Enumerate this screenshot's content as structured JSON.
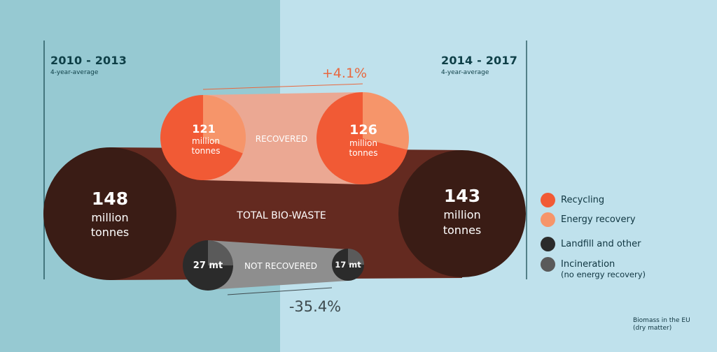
{
  "periods": {
    "left": {
      "years": "2010 - 2013",
      "note": "4-year-average"
    },
    "right": {
      "years": "2014 - 2017",
      "note": "4-year-average"
    }
  },
  "total": {
    "label": "TOTAL BIO-WASTE",
    "left": {
      "value": "148",
      "unit1": "million",
      "unit2": "tonnes"
    },
    "right": {
      "value": "143",
      "unit1": "million",
      "unit2": "tonnes"
    }
  },
  "recovered": {
    "label": "RECOVERED",
    "change": "+4.1%",
    "left": {
      "value": "121",
      "unit1": "million",
      "unit2": "tonnes",
      "recycling_share": 0.69
    },
    "right": {
      "value": "126",
      "unit1": "million",
      "unit2": "tonnes",
      "recycling_share": 0.71
    }
  },
  "not_recovered": {
    "label": "NOT RECOVERED",
    "change": "-35.4%",
    "left": {
      "value": "27 mt",
      "landfill_share": 0.75
    },
    "right": {
      "value": "17 mt",
      "landfill_share": 0.75
    }
  },
  "legend": [
    {
      "label": "Recycling",
      "color": "#f15a35"
    },
    {
      "label": "Energy recovery",
      "color": "#f6956a"
    },
    {
      "label": "Landfill and other",
      "color": "#2b2b2b"
    },
    {
      "label": "Incineration",
      "note": "(no energy recovery)",
      "color": "#5a5a5a"
    }
  ],
  "footnote": {
    "line1": "Biomass in the EU",
    "line2": "(dry matter)"
  },
  "colors": {
    "bg_left": "#96c9d2",
    "bg_right": "#bfe1ec",
    "total_band": "#642a20",
    "total_circle": "#3a1c15",
    "recovered_band": "#eba893",
    "not_recovered_band": "#8e8e8e",
    "change_up": "#e8683f",
    "change_down": "#3e4a4e"
  }
}
